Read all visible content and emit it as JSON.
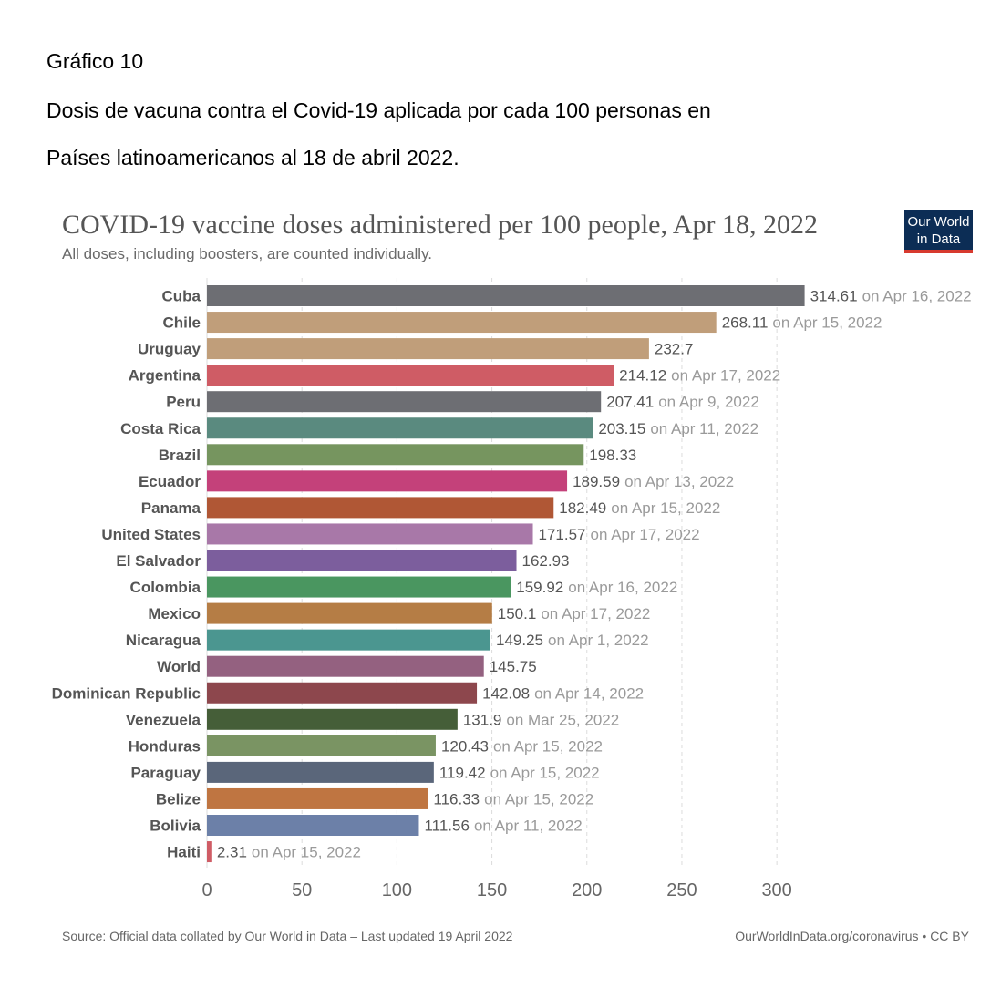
{
  "document": {
    "label": "Gráfico 10",
    "heading_line1": "Dosis de vacuna contra el Covid-19 aplicada por cada 100 personas en",
    "heading_line2": "Países latinoamericanos al 18 de abril 2022."
  },
  "logo": {
    "line1": "Our World",
    "line2": "in Data",
    "bg_color": "#0c2d55",
    "stripe_color": "#d73a2f"
  },
  "chart_data": {
    "type": "bar",
    "orientation": "horizontal",
    "title": "COVID-19 vaccine doses administered per 100 people, Apr 18, 2022",
    "subtitle": "All doses, including boosters, are counted individually.",
    "xlim": [
      0,
      320
    ],
    "xticks": [
      0,
      50,
      100,
      150,
      200,
      250,
      300
    ],
    "grid": "vertical dashed",
    "categories": [
      "Cuba",
      "Chile",
      "Uruguay",
      "Argentina",
      "Peru",
      "Costa Rica",
      "Brazil",
      "Ecuador",
      "Panama",
      "United States",
      "El Salvador",
      "Colombia",
      "Mexico",
      "Nicaragua",
      "World",
      "Dominican Republic",
      "Venezuela",
      "Honduras",
      "Paraguay",
      "Belize",
      "Bolivia",
      "Haiti"
    ],
    "values": [
      314.61,
      268.11,
      232.7,
      214.12,
      207.41,
      203.15,
      198.33,
      189.59,
      182.49,
      171.57,
      162.93,
      159.92,
      150.1,
      149.25,
      145.75,
      142.08,
      131.9,
      120.43,
      119.42,
      116.33,
      111.56,
      2.31
    ],
    "value_labels": [
      "314.61",
      "268.11",
      "232.7",
      "214.12",
      "207.41",
      "203.15",
      "198.33",
      "189.59",
      "182.49",
      "171.57",
      "162.93",
      "159.92",
      "150.1",
      "149.25",
      "145.75",
      "142.08",
      "131.9",
      "120.43",
      "119.42",
      "116.33",
      "111.56",
      "2.31"
    ],
    "date_notes": [
      "on Apr 16, 2022",
      "on Apr 15, 2022",
      "",
      "on Apr 17, 2022",
      "on Apr 9, 2022",
      "on Apr 11, 2022",
      "",
      "on Apr 13, 2022",
      "on Apr 15, 2022",
      "on Apr 17, 2022",
      "",
      "on Apr 16, 2022",
      "on Apr 17, 2022",
      "on Apr 1, 2022",
      "",
      "on Apr 14, 2022",
      "on Mar 25, 2022",
      "on Apr 15, 2022",
      "on Apr 15, 2022",
      "on Apr 15, 2022",
      "on Apr 11, 2022",
      "on Apr 15, 2022"
    ],
    "colors": [
      "#6d6e73",
      "#c09e7a",
      "#c09e7a",
      "#cf5c65",
      "#6d6e73",
      "#5a8a7f",
      "#76955f",
      "#c4417a",
      "#b05735",
      "#a878a8",
      "#7c5e9d",
      "#4a9660",
      "#b57d45",
      "#4b9690",
      "#946180",
      "#8d474d",
      "#455e38",
      "#7a9463",
      "#5a667a",
      "#bf7541",
      "#6c80a8",
      "#cf5c65"
    ],
    "source": "Source: Official data collated by Our World in Data – Last updated 19 April 2022",
    "credit": "OurWorldInData.org/coronavirus • CC BY"
  }
}
